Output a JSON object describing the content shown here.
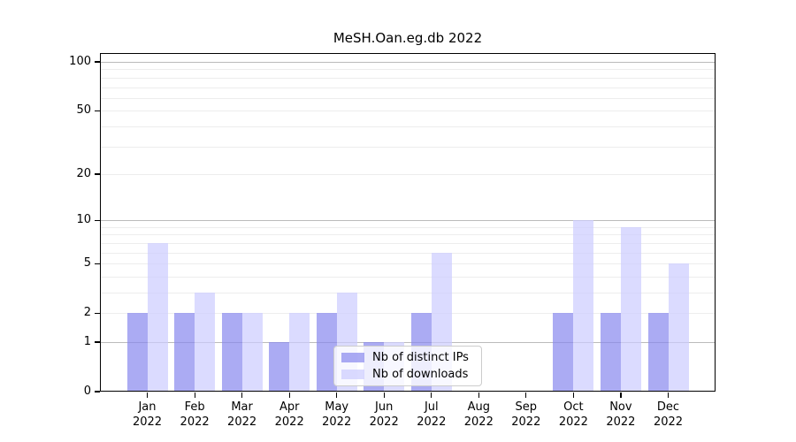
{
  "chart_data": {
    "type": "bar",
    "title": "MeSH.Oan.eg.db 2022",
    "categories": [
      "Jan",
      "Feb",
      "Mar",
      "Apr",
      "May",
      "Jun",
      "Jul",
      "Aug",
      "Sep",
      "Oct",
      "Nov",
      "Dec"
    ],
    "year": "2022",
    "series": [
      {
        "name": "Nb of distinct IPs",
        "color": "#8888ee",
        "values": [
          2,
          2,
          2,
          1,
          2,
          1,
          2,
          0,
          0,
          2,
          2,
          2
        ]
      },
      {
        "name": "Nb of downloads",
        "color": "#ccccff",
        "values": [
          7,
          3,
          2,
          2,
          3,
          1,
          6,
          0,
          0,
          10,
          9,
          5
        ]
      }
    ],
    "y_ticks": [
      0,
      1,
      2,
      5,
      10,
      20,
      50,
      100
    ],
    "y_major_gridlines": [
      1,
      10,
      100
    ],
    "scale": "log10(1+y)",
    "ylim": [
      0,
      113
    ],
    "grid": true,
    "legend_position": "lower center",
    "colors": {
      "bar_alpha": 0.7,
      "major_grid": "#bbbbbb",
      "minor_grid": "#ededed",
      "axis": "#000000",
      "background": "#ffffff"
    }
  }
}
